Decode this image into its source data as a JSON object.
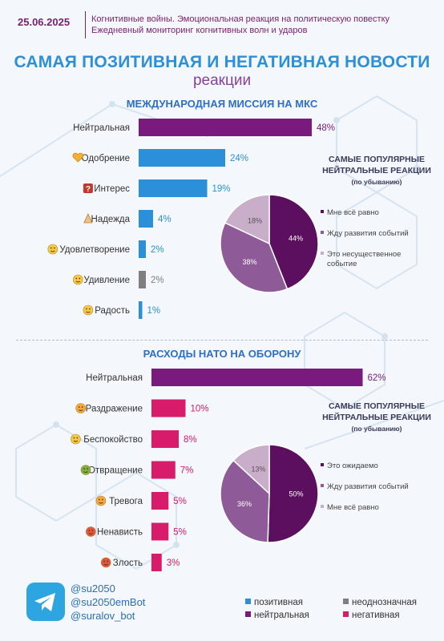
{
  "header": {
    "date": "25.06.2025",
    "subtitle_line1": "Когнитивные войны. Эмоциональная реакция на политическую повестку",
    "subtitle_line2": "Ежедневный мониторинг когнитивных волн и ударов"
  },
  "title": {
    "main": "САМАЯ ПОЗИТИВНАЯ И НЕГАТИВНАЯ НОВОСТИ",
    "sub": "реакции"
  },
  "colors": {
    "positive": "#2b90d9",
    "neutral": "#7a1a7f",
    "ambiguous": "#7f7f7f",
    "negative": "#d81b6a",
    "pie_dark": "#5c0f5e",
    "pie_mid": "#8e5b98",
    "pie_light": "#c9aec9"
  },
  "chart_data": [
    {
      "type": "bar",
      "title": "МЕЖДУНАРОДНАЯ МИССИЯ НА МКС",
      "categories": [
        "Нейтральная",
        "Одобрение",
        "Интерес",
        "Надежда",
        "Удовлетворение",
        "Удивление",
        "Радость"
      ],
      "icons": [
        "",
        "heart-hands-icon",
        "interrobang-icon",
        "praying-hands-icon",
        "smiling-face-icon",
        "astonished-face-icon",
        "grinning-face-icon"
      ],
      "values": [
        48,
        24,
        19,
        4,
        2,
        2,
        1
      ],
      "labels": [
        "48%",
        "24%",
        "19%",
        "4%",
        "2%",
        "2%",
        "1%"
      ],
      "bar_colors": [
        "#7a1a7f",
        "#2b90d9",
        "#2b90d9",
        "#2b90d9",
        "#2b90d9",
        "#7f7f7f",
        "#2b90d9"
      ]
    },
    {
      "type": "pie",
      "title": "САМЫЕ ПОПУЛЯРНЫЕ НЕЙТРАЛЬНЫЕ РЕАКЦИИ",
      "subtitle": "(по убыванию)",
      "slices": [
        {
          "name": "Мне всё равно",
          "value": 44,
          "label": "44%",
          "color": "#5c0f5e"
        },
        {
          "name": "Жду развития событий",
          "value": 38,
          "label": "38%",
          "color": "#8e5b98"
        },
        {
          "name": "Это несущественное событие",
          "value": 18,
          "label": "18%",
          "color": "#c9aec9"
        }
      ],
      "legend_lines": [
        [
          "Мне всё равно"
        ],
        [
          "Жду развития событий"
        ],
        [
          "Это несущественное",
          "событие"
        ]
      ]
    },
    {
      "type": "bar",
      "title": "РАСХОДЫ НАТО НА ОБОРОНУ",
      "categories": [
        "Нейтральная",
        "Раздражение",
        "Беспокойство",
        "Отвращение",
        "Тревога",
        "Ненависть",
        "Злость"
      ],
      "icons": [
        "",
        "annoyed-face-icon",
        "worried-face-icon",
        "nauseated-face-icon",
        "anxious-face-icon",
        "angry-devil-icon",
        "angry-face-icon"
      ],
      "values": [
        62,
        10,
        8,
        7,
        5,
        5,
        3
      ],
      "labels": [
        "62%",
        "10%",
        "8%",
        "7%",
        "5%",
        "5%",
        "3%"
      ],
      "bar_colors": [
        "#7a1a7f",
        "#d81b6a",
        "#d81b6a",
        "#d81b6a",
        "#d81b6a",
        "#d81b6a",
        "#d81b6a"
      ]
    },
    {
      "type": "pie",
      "title": "САМЫЕ ПОПУЛЯРНЫЕ НЕЙТРАЛЬНЫЕ РЕАКЦИИ",
      "subtitle": "(по убыванию)",
      "slices": [
        {
          "name": "Это ожидаемо",
          "value": 50,
          "label": "50%",
          "color": "#5c0f5e"
        },
        {
          "name": "Жду развития событий",
          "value": 36,
          "label": "36%",
          "color": "#8e5b98"
        },
        {
          "name": "Мне всё равно",
          "value": 13,
          "label": "13%",
          "color": "#c9aec9"
        }
      ],
      "legend_lines": [
        [
          "Это ожидаемо"
        ],
        [
          "Жду развития событий"
        ],
        [
          "Мне всё равно"
        ]
      ]
    }
  ],
  "footer": {
    "handles": [
      "@su2050",
      "@su2050emBot",
      "@suralov_bot"
    ],
    "legend": [
      {
        "label": "позитивная",
        "color": "#2b90d9"
      },
      {
        "label": "неоднозначная",
        "color": "#7f7f7f"
      },
      {
        "label": "нейтральная",
        "color": "#7a1a7f"
      },
      {
        "label": "негативная",
        "color": "#d81b6a"
      }
    ]
  }
}
